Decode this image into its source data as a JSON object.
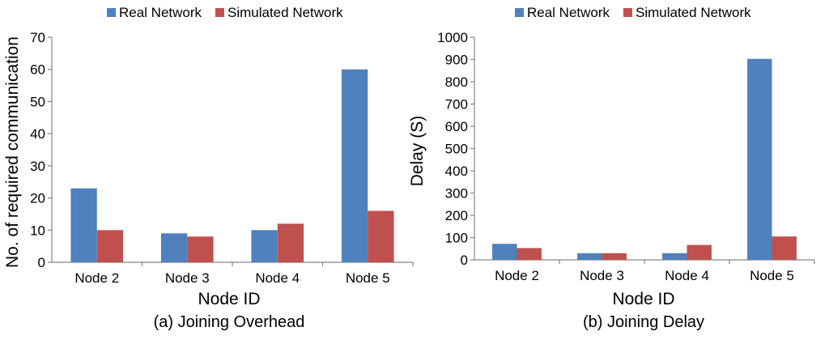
{
  "colors": {
    "real": "#4F81BD",
    "simulated": "#C0504D",
    "axis": "#868686"
  },
  "chart_data": [
    {
      "type": "bar",
      "categories": [
        "Node 2",
        "Node 3",
        "Node 4",
        "Node 5"
      ],
      "series": [
        {
          "name": "Real Network",
          "values": [
            23,
            9,
            10,
            60
          ]
        },
        {
          "name": "Simulated Network",
          "values": [
            10,
            8,
            12,
            16
          ]
        }
      ],
      "xlabel": "Node ID",
      "ylabel": "No. of required communication",
      "caption": "(a) Joining Overhead",
      "ylim": [
        0,
        70
      ],
      "yticks": [
        0,
        10,
        20,
        30,
        40,
        50,
        60,
        70
      ],
      "grid": false,
      "legend": "top"
    },
    {
      "type": "bar",
      "categories": [
        "Node 2",
        "Node 3",
        "Node 4",
        "Node 5"
      ],
      "series": [
        {
          "name": "Real Network",
          "values": [
            72,
            30,
            30,
            903
          ]
        },
        {
          "name": "Simulated Network",
          "values": [
            53,
            30,
            67,
            105
          ]
        }
      ],
      "xlabel": "Node ID",
      "ylabel": "Delay (S)",
      "caption": "(b) Joining Delay",
      "ylim": [
        0,
        1000
      ],
      "yticks": [
        0,
        100,
        200,
        300,
        400,
        500,
        600,
        700,
        800,
        900,
        1000
      ],
      "grid": false,
      "legend": "top"
    }
  ]
}
